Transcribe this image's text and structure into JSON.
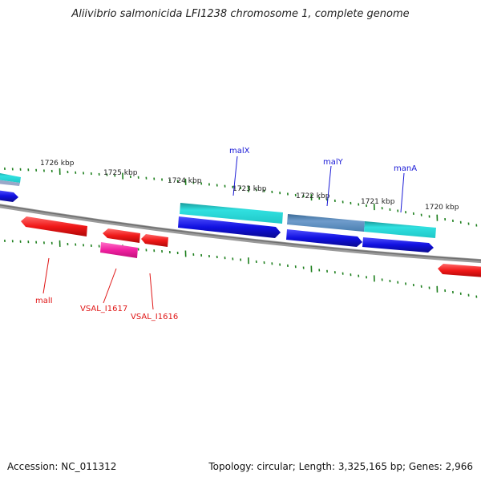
{
  "title": "Aliivibrio salmonicida LFI1238 chromosome 1, complete genome",
  "accession": "Accession: NC_011312",
  "summary": "Topology: circular; Length: 3,325,165 bp; Genes: 2,966",
  "colors": {
    "backbone": "#8a8a8a",
    "tick": "#1d7f1d",
    "forward_strand_label": "#1a1ad6",
    "reverse_strand_label": "#e01616",
    "blue_gene": "#1010e0",
    "cyan_gene": "#20c8c8",
    "steel_gene": "#4a7fb0",
    "red_gene": "#f01818",
    "magenta_gene": "#f020a0"
  },
  "scale_labels": [
    "1726 kbp",
    "1725 kbp",
    "1724 kbp",
    "1723 kbp",
    "1722 kbp",
    "1721 kbp",
    "1720 kbp"
  ],
  "genes_forward": [
    {
      "label": "malX",
      "color": "cyan"
    },
    {
      "label": "malY",
      "color": "steel"
    },
    {
      "label": "manA",
      "color": "cyan"
    }
  ],
  "genes_reverse": [
    {
      "label": "malI",
      "color": "red"
    },
    {
      "label": "VSAL_I1617",
      "color": "magenta"
    },
    {
      "label": "VSAL_I1616",
      "color": "red"
    }
  ]
}
